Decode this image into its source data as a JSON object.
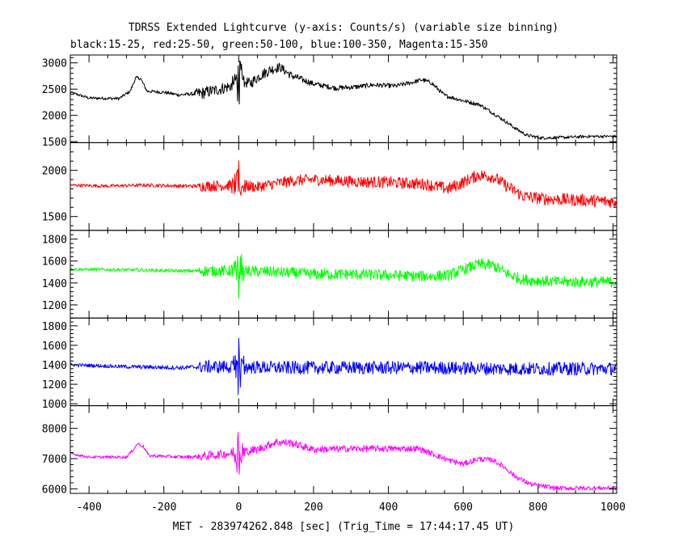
{
  "chart_data": {
    "type": "line",
    "title": "TDRSS Extended Lightcurve (y-axis: Counts/s) (variable size binning)",
    "subtitle": "black:15-25, red:25-50, green:50-100, blue:100-350, Magenta:15-350",
    "xlabel": "MET - 283974262.848 [sec] (Trig_Time = 17:44:17.45 UT)",
    "xlim": [
      -450,
      1010
    ],
    "xticks": [
      -400,
      -200,
      0,
      200,
      400,
      600,
      800,
      1000
    ],
    "grid": false,
    "panels": [
      {
        "name": "black:15-25",
        "color": "#000000",
        "ylim": [
          1480,
          3150
        ],
        "yticks": [
          1500,
          2000,
          2500,
          3000
        ],
        "base": [
          [
            -450,
            2440
          ],
          [
            -400,
            2330
          ],
          [
            -320,
            2320
          ],
          [
            -290,
            2460
          ],
          [
            -275,
            2720
          ],
          [
            -262,
            2700
          ],
          [
            -245,
            2460
          ],
          [
            -200,
            2440
          ],
          [
            -160,
            2390
          ],
          [
            -100,
            2420
          ],
          [
            -50,
            2500
          ],
          [
            -20,
            2560
          ],
          [
            0,
            2700
          ],
          [
            30,
            2600
          ],
          [
            55,
            2750
          ],
          [
            85,
            2870
          ],
          [
            110,
            2920
          ],
          [
            140,
            2760
          ],
          [
            200,
            2600
          ],
          [
            260,
            2520
          ],
          [
            310,
            2540
          ],
          [
            360,
            2580
          ],
          [
            420,
            2560
          ],
          [
            470,
            2640
          ],
          [
            490,
            2680
          ],
          [
            515,
            2620
          ],
          [
            550,
            2380
          ],
          [
            600,
            2280
          ],
          [
            645,
            2200
          ],
          [
            680,
            2040
          ],
          [
            710,
            1900
          ],
          [
            740,
            1750
          ],
          [
            770,
            1620
          ],
          [
            810,
            1570
          ],
          [
            870,
            1580
          ],
          [
            940,
            1600
          ],
          [
            1010,
            1600
          ]
        ],
        "noise": [
          [
            -450,
            15
          ],
          [
            -120,
            20
          ],
          [
            -110,
            70
          ],
          [
            80,
            60
          ],
          [
            200,
            30
          ],
          [
            700,
            20
          ],
          [
            1010,
            15
          ]
        ],
        "burst": {
          "t0": 0,
          "amp": 550,
          "width": 20
        }
      },
      {
        "name": "red:25-50",
        "color": "#ff0000",
        "ylim": [
          1350,
          2300
        ],
        "yticks": [
          1500,
          2000
        ],
        "base": [
          [
            -450,
            1840
          ],
          [
            -350,
            1830
          ],
          [
            -250,
            1840
          ],
          [
            -150,
            1830
          ],
          [
            -100,
            1830
          ],
          [
            0,
            1840
          ],
          [
            50,
            1820
          ],
          [
            100,
            1860
          ],
          [
            150,
            1890
          ],
          [
            200,
            1900
          ],
          [
            300,
            1880
          ],
          [
            400,
            1870
          ],
          [
            500,
            1850
          ],
          [
            560,
            1800
          ],
          [
            600,
            1870
          ],
          [
            640,
            1950
          ],
          [
            680,
            1930
          ],
          [
            720,
            1820
          ],
          [
            760,
            1720
          ],
          [
            820,
            1690
          ],
          [
            900,
            1680
          ],
          [
            1010,
            1660
          ]
        ],
        "noise": [
          [
            -450,
            10
          ],
          [
            -110,
            12
          ],
          [
            -100,
            35
          ],
          [
            900,
            40
          ],
          [
            1010,
            40
          ]
        ],
        "burst": {
          "t0": 0,
          "amp": 320,
          "width": 20
        }
      },
      {
        "name": "green:50-100",
        "color": "#00ff00",
        "ylim": [
          1080,
          1880
        ],
        "yticks": [
          1200,
          1400,
          1600,
          1800
        ],
        "base": [
          [
            -450,
            1525
          ],
          [
            -300,
            1520
          ],
          [
            -150,
            1510
          ],
          [
            -100,
            1510
          ],
          [
            0,
            1510
          ],
          [
            100,
            1500
          ],
          [
            200,
            1480
          ],
          [
            300,
            1480
          ],
          [
            400,
            1470
          ],
          [
            500,
            1460
          ],
          [
            560,
            1470
          ],
          [
            600,
            1520
          ],
          [
            640,
            1570
          ],
          [
            680,
            1560
          ],
          [
            720,
            1480
          ],
          [
            760,
            1430
          ],
          [
            850,
            1410
          ],
          [
            1010,
            1410
          ]
        ],
        "noise": [
          [
            -450,
            8
          ],
          [
            -110,
            10
          ],
          [
            -100,
            30
          ],
          [
            1010,
            30
          ]
        ],
        "burst": {
          "t0": 0,
          "amp": 300,
          "width": 20
        }
      },
      {
        "name": "blue:100-350",
        "color": "#0000ff",
        "ylim": [
          980,
          1880
        ],
        "yticks": [
          1000,
          1200,
          1400,
          1600,
          1800
        ],
        "base": [
          [
            -450,
            1400
          ],
          [
            -300,
            1380
          ],
          [
            -150,
            1370
          ],
          [
            -100,
            1380
          ],
          [
            0,
            1380
          ],
          [
            100,
            1370
          ],
          [
            300,
            1370
          ],
          [
            500,
            1370
          ],
          [
            700,
            1360
          ],
          [
            1010,
            1360
          ]
        ],
        "noise": [
          [
            -450,
            10
          ],
          [
            -110,
            14
          ],
          [
            -100,
            40
          ],
          [
            1010,
            40
          ]
        ],
        "burst": {
          "t0": 0,
          "amp": 380,
          "width": 18
        }
      },
      {
        "name": "Magenta:15-350",
        "color": "#ff00ff",
        "ylim": [
          5850,
          8750
        ],
        "yticks": [
          6000,
          7000,
          8000
        ],
        "base": [
          [
            -450,
            7170
          ],
          [
            -400,
            7050
          ],
          [
            -300,
            7050
          ],
          [
            -285,
            7250
          ],
          [
            -270,
            7500
          ],
          [
            -255,
            7400
          ],
          [
            -240,
            7100
          ],
          [
            -150,
            7050
          ],
          [
            -100,
            7070
          ],
          [
            0,
            7200
          ],
          [
            50,
            7300
          ],
          [
            100,
            7550
          ],
          [
            140,
            7520
          ],
          [
            200,
            7300
          ],
          [
            300,
            7330
          ],
          [
            400,
            7330
          ],
          [
            480,
            7330
          ],
          [
            520,
            7150
          ],
          [
            560,
            6950
          ],
          [
            600,
            6820
          ],
          [
            640,
            6990
          ],
          [
            680,
            6950
          ],
          [
            710,
            6720
          ],
          [
            740,
            6400
          ],
          [
            780,
            6150
          ],
          [
            850,
            6020
          ],
          [
            1010,
            6030
          ]
        ],
        "noise": [
          [
            -450,
            25
          ],
          [
            -110,
            35
          ],
          [
            -100,
            90
          ],
          [
            200,
            70
          ],
          [
            700,
            50
          ],
          [
            1010,
            40
          ]
        ],
        "burst": {
          "t0": 0,
          "amp": 1000,
          "width": 20
        }
      }
    ]
  }
}
